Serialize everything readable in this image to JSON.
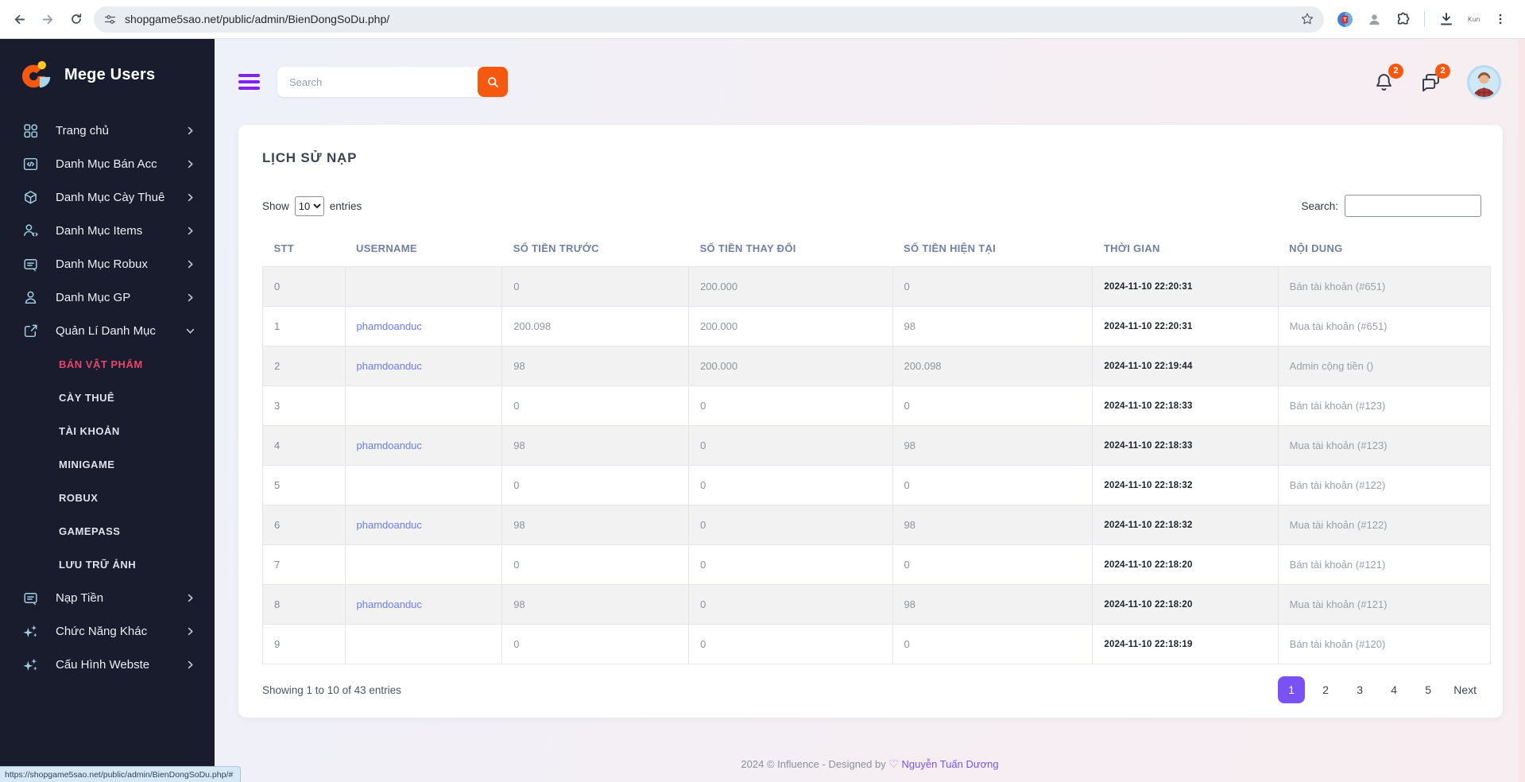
{
  "browser": {
    "url": "shopgame5sao.net/public/admin/BienDongSoDu.php/",
    "status_link": "https://shopgame5sao.net/public/admin/BienDongSoDu.php/#",
    "profile_label": "Kun"
  },
  "sidebar": {
    "brand": "Mege Users",
    "items": [
      {
        "label": "Trang chủ",
        "icon": "grid",
        "chevron": "right",
        "type": "item"
      },
      {
        "label": "Danh Mục Bán Acc",
        "icon": "code-window",
        "chevron": "right",
        "type": "item"
      },
      {
        "label": "Danh Mục Cày Thuê",
        "icon": "cube",
        "chevron": "right",
        "type": "item"
      },
      {
        "label": "Danh Mục Items",
        "icon": "user-code",
        "chevron": "right",
        "type": "item"
      },
      {
        "label": "Danh Mục Robux",
        "icon": "card",
        "chevron": "right",
        "type": "item"
      },
      {
        "label": "Danh Mục GP",
        "icon": "user",
        "chevron": "right",
        "type": "item"
      },
      {
        "label": "Quản Lí Danh Mục",
        "icon": "external",
        "chevron": "down",
        "type": "item"
      },
      {
        "label": "BÁN VẬT PHẨM",
        "type": "sub",
        "active": true
      },
      {
        "label": "CÀY THUÊ",
        "type": "sub"
      },
      {
        "label": "TÀI KHOẢN",
        "type": "sub"
      },
      {
        "label": "MINIGAME",
        "type": "sub"
      },
      {
        "label": "ROBUX",
        "type": "sub"
      },
      {
        "label": "GAMEPASS",
        "type": "sub"
      },
      {
        "label": "LƯU TRỮ ẢNH",
        "type": "sub"
      },
      {
        "label": "Nạp Tiền",
        "icon": "card",
        "chevron": "right",
        "type": "item"
      },
      {
        "label": "Chức Năng Khác",
        "icon": "sparkles",
        "chevron": "right",
        "type": "item"
      },
      {
        "label": "Cấu Hình Webste",
        "icon": "sparkles",
        "chevron": "right",
        "type": "item"
      }
    ]
  },
  "topbar": {
    "search_placeholder": "Search",
    "notification_count": "2",
    "message_count": "2"
  },
  "page": {
    "title": "LỊCH SỬ NẠP",
    "show_label": "Show",
    "page_size": "10",
    "entries_label": "entries",
    "search_label": "Search:",
    "table": {
      "columns": [
        "STT",
        "USERNAME",
        "SỐ TIỀN TRƯỚC",
        "SỐ TIỀN THAY ĐỔI",
        "SỐ TIỀN HIỆN TẠI",
        "THỜI GIAN",
        "NỘI DUNG"
      ],
      "rows": [
        {
          "stt": "0",
          "username": "",
          "before": "0",
          "change": "200.000",
          "current": "0",
          "time": "2024-11-10 22:20:31",
          "note": "Bán tài khoản (#651)"
        },
        {
          "stt": "1",
          "username": "phamdoanduc",
          "before": "200.098",
          "change": "200.000",
          "current": "98",
          "time": "2024-11-10 22:20:31",
          "note": "Mua tài khoản (#651)"
        },
        {
          "stt": "2",
          "username": "phamdoanduc",
          "before": "98",
          "change": "200.000",
          "current": "200.098",
          "time": "2024-11-10 22:19:44",
          "note": "Admin cộng tiền ()"
        },
        {
          "stt": "3",
          "username": "",
          "before": "0",
          "change": "0",
          "current": "0",
          "time": "2024-11-10 22:18:33",
          "note": "Bán tài khoản (#123)"
        },
        {
          "stt": "4",
          "username": "phamdoanduc",
          "before": "98",
          "change": "0",
          "current": "98",
          "time": "2024-11-10 22:18:33",
          "note": "Mua tài khoản (#123)"
        },
        {
          "stt": "5",
          "username": "",
          "before": "0",
          "change": "0",
          "current": "0",
          "time": "2024-11-10 22:18:32",
          "note": "Bán tài khoản (#122)"
        },
        {
          "stt": "6",
          "username": "phamdoanduc",
          "before": "98",
          "change": "0",
          "current": "98",
          "time": "2024-11-10 22:18:32",
          "note": "Mua tài khoản (#122)"
        },
        {
          "stt": "7",
          "username": "",
          "before": "0",
          "change": "0",
          "current": "0",
          "time": "2024-11-10 22:18:20",
          "note": "Bán tài khoản (#121)"
        },
        {
          "stt": "8",
          "username": "phamdoanduc",
          "before": "98",
          "change": "0",
          "current": "98",
          "time": "2024-11-10 22:18:20",
          "note": "Mua tài khoản (#121)"
        },
        {
          "stt": "9",
          "username": "",
          "before": "0",
          "change": "0",
          "current": "0",
          "time": "2024-11-10 22:18:19",
          "note": "Bán tài khoản (#120)"
        }
      ]
    },
    "summary": "Showing 1 to 10 of 43 entries",
    "pagination": {
      "pages": [
        "1",
        "2",
        "3",
        "4",
        "5"
      ],
      "active": "1",
      "next_label": "Next"
    }
  },
  "footer": {
    "text": "2024 © Influence - Designed by",
    "heart": "♡",
    "author": "Nguyễn Tuấn Dương"
  },
  "colors": {
    "accent_orange": "#f4590f",
    "accent_purple": "#7a52f4",
    "active_menu_red": "#e5466b",
    "link_blue": "#6b7cfb",
    "sidebar_bg": "#191c2c"
  }
}
